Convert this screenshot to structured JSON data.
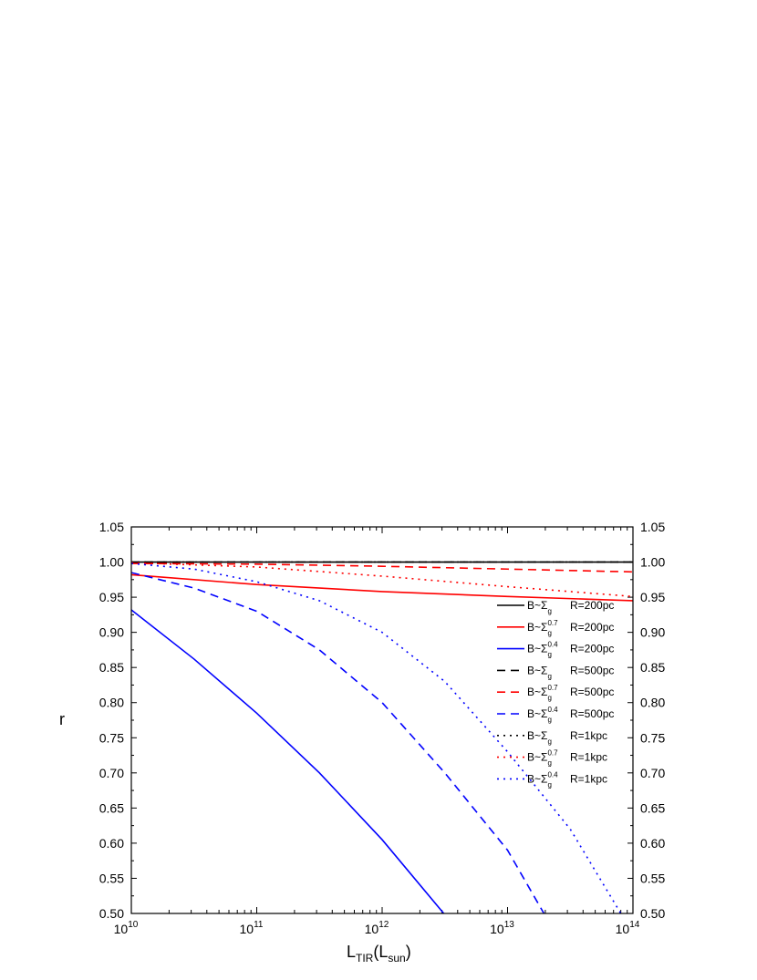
{
  "chart_data": {
    "type": "line",
    "x_label": {
      "base": "L",
      "sub": "TIR",
      "mid": "(L",
      "sub2": "sun",
      "end": ")"
    },
    "y_label": "r",
    "xscale": "log",
    "xlim": [
      10000000000.0,
      100000000000000.0
    ],
    "xticks": [
      {
        "value": 10000000000.0,
        "label": {
          "base": "10",
          "exp": "10"
        }
      },
      {
        "value": 100000000000.0,
        "label": {
          "base": "10",
          "exp": "11"
        }
      },
      {
        "value": 1000000000000.0,
        "label": {
          "base": "10",
          "exp": "12"
        }
      },
      {
        "value": 10000000000000.0,
        "label": {
          "base": "10",
          "exp": "13"
        }
      },
      {
        "value": 100000000000000.0,
        "label": {
          "base": "10",
          "exp": "14"
        }
      }
    ],
    "ylim": [
      0.5,
      1.05
    ],
    "yticks": [
      {
        "value": 0.5,
        "label": "0.50"
      },
      {
        "value": 0.55,
        "label": "0.55"
      },
      {
        "value": 0.6,
        "label": "0.60"
      },
      {
        "value": 0.65,
        "label": "0.65"
      },
      {
        "value": 0.7,
        "label": "0.70"
      },
      {
        "value": 0.75,
        "label": "0.75"
      },
      {
        "value": 0.8,
        "label": "0.80"
      },
      {
        "value": 0.85,
        "label": "0.85"
      },
      {
        "value": 0.9,
        "label": "0.90"
      },
      {
        "value": 0.95,
        "label": "0.95"
      },
      {
        "value": 1.0,
        "label": "1.00"
      },
      {
        "value": 1.05,
        "label": "1.05"
      }
    ],
    "legend": "right",
    "series": [
      {
        "name": "B~Σ",
        "sub": "g",
        "label": "R=200pc",
        "color": "#000000",
        "dash": "solid",
        "x": [
          10000000000.0,
          100000000000.0,
          1000000000000.0,
          10000000000000.0,
          100000000000000.0
        ],
        "values": [
          1.0,
          1.0,
          1.0,
          1.0,
          1.0
        ]
      },
      {
        "name": "B~Σ",
        "sub": "g",
        "sup": "0.7",
        "label": "R=200pc",
        "color": "#ff0000",
        "dash": "solid",
        "x": [
          10000000000.0,
          100000000000.0,
          1000000000000.0,
          10000000000000.0,
          100000000000000.0
        ],
        "values": [
          0.982,
          0.968,
          0.958,
          0.951,
          0.945
        ]
      },
      {
        "name": "B~Σ",
        "sub": "g",
        "sup": "0.4",
        "label": "R=200pc",
        "color": "#0000ff",
        "dash": "solid",
        "x": [
          10000000000.0,
          31620000000.0,
          100000000000.0,
          316200000000.0,
          1000000000000.0,
          3100000000000.0
        ],
        "values": [
          0.932,
          0.862,
          0.785,
          0.7,
          0.605,
          0.5
        ]
      },
      {
        "name": "B~Σ",
        "sub": "g",
        "label": "R=500pc",
        "color": "#000000",
        "dash": "dash",
        "x": [
          10000000000.0,
          100000000000.0,
          1000000000000.0,
          10000000000000.0,
          100000000000000.0
        ],
        "values": [
          1.0,
          1.0,
          1.0,
          1.0,
          1.0
        ]
      },
      {
        "name": "B~Σ",
        "sub": "g",
        "sup": "0.7",
        "label": "R=500pc",
        "color": "#ff0000",
        "dash": "dash",
        "x": [
          10000000000.0,
          100000000000.0,
          1000000000000.0,
          10000000000000.0,
          100000000000000.0
        ],
        "values": [
          0.998,
          0.997,
          0.994,
          0.99,
          0.986
        ]
      },
      {
        "name": "B~Σ",
        "sub": "g",
        "sup": "0.4",
        "label": "R=500pc",
        "color": "#0000ff",
        "dash": "dash",
        "x": [
          10000000000.0,
          31620000000.0,
          100000000000.0,
          316200000000.0,
          1000000000000.0,
          3162000000000.0,
          10000000000000.0,
          19500000000000.0
        ],
        "values": [
          0.985,
          0.963,
          0.93,
          0.875,
          0.8,
          0.7,
          0.59,
          0.5
        ]
      },
      {
        "name": "B~Σ",
        "sub": "g",
        "label": "R=1kpc",
        "color": "#000000",
        "dash": "dot",
        "x": [
          10000000000.0,
          100000000000.0,
          1000000000000.0,
          10000000000000.0,
          100000000000000.0
        ],
        "values": [
          1.0,
          1.0,
          1.0,
          1.0,
          1.0
        ]
      },
      {
        "name": "B~Σ",
        "sub": "g",
        "sup": "0.7",
        "label": "R=1kpc",
        "color": "#ff0000",
        "dash": "dot",
        "x": [
          10000000000.0,
          100000000000.0,
          1000000000000.0,
          10000000000000.0,
          100000000000000.0
        ],
        "values": [
          0.999,
          0.993,
          0.98,
          0.965,
          0.951
        ]
      },
      {
        "name": "B~Σ",
        "sub": "g",
        "sup": "0.4",
        "label": "R=1kpc",
        "color": "#0000ff",
        "dash": "dot",
        "x": [
          10000000000.0,
          31620000000.0,
          100000000000.0,
          316200000000.0,
          1000000000000.0,
          3162000000000.0,
          10000000000000.0,
          31620000000000.0,
          80000000000000.0
        ],
        "values": [
          0.998,
          0.99,
          0.972,
          0.945,
          0.9,
          0.83,
          0.73,
          0.62,
          0.5
        ]
      }
    ]
  }
}
